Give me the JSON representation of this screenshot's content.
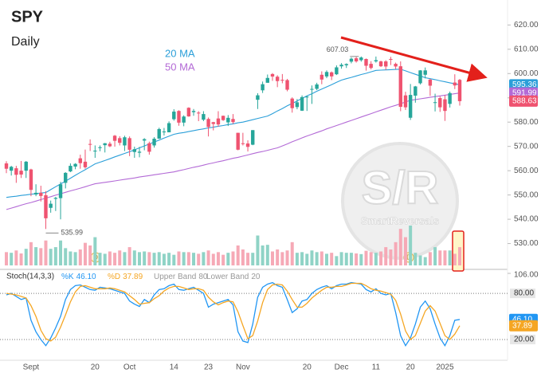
{
  "chart_data": [
    {
      "type": "candlestick",
      "title": "SPY",
      "subtitle": "Daily",
      "categories": [
        null,
        null,
        null,
        null,
        null,
        "Sept",
        null,
        null,
        null,
        null,
        null,
        null,
        null,
        null,
        null,
        null,
        null,
        null,
        "20",
        null,
        null,
        null,
        null,
        null,
        null,
        "Oct",
        null,
        null,
        null,
        null,
        null,
        null,
        null,
        null,
        "14",
        null,
        null,
        null,
        null,
        null,
        null,
        "23",
        null,
        null,
        null,
        null,
        null,
        null,
        "Nov",
        null,
        null,
        null,
        null,
        null,
        null,
        null,
        null,
        null,
        null,
        null,
        null,
        "20",
        null,
        null,
        null,
        null,
        null,
        null,
        "Dec",
        null,
        null,
        null,
        null,
        null,
        null,
        "11",
        null,
        null,
        null,
        null,
        null,
        null,
        "20",
        null,
        null,
        null,
        null,
        null,
        null,
        "2025",
        null,
        null,
        null
      ],
      "open": [
        563,
        560,
        561,
        560,
        560,
        560.5,
        550.2,
        550.9,
        549.9,
        544.7,
        548.4,
        548.7,
        555,
        559.7,
        561.7,
        565.1,
        563.7,
        571,
        568.2,
        569.3,
        570.5,
        571.1,
        574.4,
        573.4,
        570.4,
        573.4,
        567.7,
        567.4,
        572.4,
        571.3,
        570.4,
        573.2,
        575.8,
        575.8,
        581.2,
        584.6,
        579.8,
        585.9,
        584.1,
        583.9,
        581,
        581.3,
        579.98,
        581.5,
        582.6,
        579.9,
        581.3,
        575.6,
        571.3,
        571.2,
        570.7,
        589.2,
        593.1,
        596.2,
        599.8,
        598.7,
        597.4,
        597.3,
        589.7,
        586.2,
        584.7,
        590.4,
        593.4,
        593.7,
        599.5,
        598.8,
        600.5,
        599.7,
        602.97,
        603.4,
        604.9,
        606.3,
        605.5,
        606,
        604,
        605,
        605,
        605,
        606,
        604,
        603,
        591,
        581.8,
        590.9,
        596,
        599.5,
        597.5,
        588,
        589.9,
        589.4,
        587.5,
        596.3,
        597.4
      ],
      "high": [
        563.9,
        562,
        562,
        564,
        564,
        560.8,
        554.4,
        553.8,
        551.6,
        547.7,
        549.2,
        555.4,
        559.4,
        563,
        563.1,
        566.6,
        568.7,
        572.9,
        570.4,
        570.4,
        571.4,
        571.9,
        574.7,
        574.2,
        574.4,
        574.1,
        569.9,
        569.8,
        573.4,
        571.96,
        573.8,
        577.7,
        577.6,
        580.3,
        585.3,
        584.9,
        582.8,
        586.1,
        585.4,
        584.5,
        584.5,
        581.9,
        580.1,
        584.5,
        582.7,
        582.9,
        583.3,
        575.6,
        575.6,
        572.5,
        576.7,
        591.9,
        596.7,
        599.6,
        600.2,
        599.3,
        599.8,
        597.8,
        590.2,
        589.5,
        591,
        590.8,
        595.1,
        596.2,
        600.9,
        601.3,
        600.85,
        603.35,
        604.3,
        604.2,
        606.6,
        606.9,
        607.03,
        606.2,
        605.1,
        607,
        605.3,
        605.5,
        606.9,
        604.5,
        605,
        592.5,
        595.7,
        594.9,
        601.4,
        602.5,
        597.8,
        591.7,
        590.6,
        591.1,
        592.6,
        599.7,
        597.8
      ],
      "low": [
        559,
        558,
        555,
        557,
        557,
        549.5,
        549.5,
        547.3,
        535.99,
        542.7,
        543.4,
        539.96,
        552.7,
        559.4,
        560.6,
        560.8,
        560.8,
        568.1,
        565.3,
        568,
        567.5,
        569.7,
        569.9,
        570.4,
        568.1,
        566,
        565.3,
        565.5,
        568.4,
        566.6,
        569.5,
        573.1,
        574.5,
        575.8,
        580.6,
        578.5,
        578.3,
        582.2,
        582.6,
        580.4,
        580.4,
        574.1,
        576.6,
        578.1,
        580.5,
        578.4,
        579.3,
        568.4,
        570.4,
        567.9,
        570.5,
        585.4,
        592,
        596.2,
        597,
        594.4,
        596,
        592.7,
        583.9,
        585.3,
        584.6,
        584.6,
        587.5,
        593.2,
        595.6,
        598.1,
        597.3,
        599.4,
        602,
        602.3,
        604.2,
        604.5,
        604.9,
        601.2,
        601.7,
        604.5,
        602.7,
        601.5,
        603.5,
        601.8,
        584.5,
        585,
        580.9,
        588,
        595.5,
        598,
        590.8,
        584.4,
        584.2,
        580.5,
        586,
        593.6,
        586.8
      ],
      "close": [
        560.8,
        561.6,
        558.3,
        558.4,
        563.7,
        552.1,
        550.9,
        549.6,
        540.4,
        546.4,
        548.8,
        554.4,
        559.1,
        562,
        562.8,
        563.1,
        561.4,
        570.98,
        568.25,
        569.67,
        571.3,
        570.04,
        572.3,
        571.47,
        573.76,
        568.62,
        568.86,
        567.82,
        572.98,
        567.8,
        573.17,
        577.14,
        576.13,
        579.58,
        584.32,
        579.78,
        582.3,
        582.35,
        584.59,
        583.63,
        583.32,
        577.99,
        579.24,
        579.04,
        580.83,
        581.77,
        580.01,
        568.64,
        571.04,
        569.81,
        576.7,
        591.04,
        595.61,
        598.19,
        598.76,
        596.9,
        597.19,
        593.35,
        585.75,
        588.15,
        590.3,
        590.5,
        593.67,
        595.51,
        597.53,
        600.65,
        598.83,
        602.55,
        603.63,
        603.91,
        606.1,
        605,
        606.6,
        603.2,
        602.3,
        605.5,
        603,
        602.9,
        605.8,
        602.9,
        586.3,
        586.1,
        591.2,
        594.7,
        601.3,
        601.3,
        595,
        588.2,
        586.1,
        584.6,
        591.95,
        595.1,
        588.63
      ],
      "volume": [
        40,
        38,
        45,
        36,
        50,
        70,
        55,
        52,
        75,
        50,
        55,
        75,
        52,
        42,
        40,
        48,
        68,
        60,
        85,
        38,
        35,
        42,
        38,
        45,
        40,
        55,
        45,
        40,
        42,
        40,
        38,
        40,
        35,
        38,
        32,
        42,
        40,
        40,
        38,
        35,
        40,
        45,
        35,
        40,
        32,
        38,
        42,
        60,
        48,
        38,
        38,
        90,
        60,
        62,
        42,
        48,
        40,
        45,
        70,
        38,
        40,
        35,
        45,
        40,
        42,
        35,
        38,
        28,
        40,
        38,
        38,
        36,
        34,
        44,
        40,
        38,
        42,
        55,
        48,
        70,
        110,
        85,
        120,
        38,
        30,
        25,
        40,
        55,
        45,
        45,
        45,
        35,
        55
      ],
      "up_color": "#26a69a",
      "down_color": "#ef5370",
      "volume_up_color": "#8fd3c6",
      "volume_down_color": "#f6a9b6",
      "series": [
        {
          "name": "20 MA",
          "color": "#2b9fd9",
          "values": [
            549,
            549.3,
            549.5,
            549.8,
            550,
            550.3,
            550.5,
            550.8,
            551,
            552.2,
            553.4,
            554.5,
            555.7,
            556.9,
            558.1,
            559.3,
            560.4,
            561.6,
            562.8,
            563.5,
            564.2,
            564.9,
            565.7,
            566.4,
            567.1,
            567.8,
            568.6,
            569.4,
            570.2,
            571,
            571.8,
            572.6,
            573.4,
            574.2,
            575,
            575.4,
            575.7,
            576.1,
            576.5,
            576.9,
            577.2,
            577.6,
            577.9,
            578.3,
            578.6,
            579,
            579.3,
            579.7,
            580,
            580.5,
            581,
            581.5,
            582,
            582.5,
            583.5,
            584.6,
            585.6,
            586.7,
            587.7,
            588.7,
            589.8,
            590.8,
            591.7,
            592.7,
            593.6,
            594.5,
            595.4,
            596.4,
            597.3,
            597.9,
            598.4,
            599,
            599.6,
            600.1,
            600.7,
            601.3,
            601.4,
            601.5,
            601.6,
            601.7,
            601.8,
            601.1,
            600.4,
            599.7,
            599,
            598.3,
            597.9,
            597.5,
            597,
            596.6,
            596.2,
            595.8,
            595.36
          ]
        },
        {
          "name": "50 MA",
          "color": "#b36ad6",
          "values": [
            544,
            544.6,
            545.2,
            545.8,
            546.4,
            546.9,
            547.5,
            548.1,
            548.7,
            549.3,
            549.9,
            550.5,
            551.1,
            551.7,
            552.2,
            552.8,
            553.4,
            554,
            554.6,
            554.9,
            555.2,
            555.5,
            555.8,
            556.1,
            556.4,
            556.7,
            557,
            557.4,
            557.7,
            558,
            558.3,
            558.6,
            558.9,
            559.2,
            559.5,
            560,
            560.4,
            560.9,
            561.4,
            561.8,
            562.3,
            562.8,
            563.2,
            563.7,
            564.1,
            564.6,
            565.1,
            565.5,
            566,
            566.5,
            567,
            567.5,
            567.9,
            568.4,
            568.9,
            569.4,
            570.2,
            571,
            571.9,
            572.7,
            573.5,
            574.3,
            575,
            575.7,
            576.4,
            577.2,
            577.9,
            578.6,
            579.3,
            580,
            580.7,
            581.4,
            582.1,
            582.8,
            583.5,
            584.2,
            584.9,
            585.6,
            586.3,
            586.9,
            587.6,
            588.3,
            589,
            589.3,
            589.6,
            589.9,
            590.2,
            590.5,
            590.8,
            591.1,
            591.4,
            591.7,
            591.99
          ]
        }
      ],
      "ylim": [
        521,
        627
      ],
      "yticks": [
        {
          "value": 530,
          "label": "530.00"
        },
        {
          "value": 540,
          "label": "540.00"
        },
        {
          "value": 550,
          "label": "550.00"
        },
        {
          "value": 560,
          "label": "560.00"
        },
        {
          "value": 570,
          "label": "570.00"
        },
        {
          "value": 580,
          "label": "580.00"
        },
        {
          "value": 590,
          "label": "590.00"
        },
        {
          "value": 600,
          "label": "600.00"
        },
        {
          "value": 610,
          "label": "610.00"
        },
        {
          "value": 620,
          "label": "620.00"
        }
      ],
      "grid": false,
      "watermark": {
        "logo": "S/R",
        "name": "SmartReversals"
      }
    },
    {
      "type": "line",
      "title": "Stoch(14,3,3)",
      "series": [
        {
          "name": "%K",
          "color": "#2196f3",
          "last_value_label": "46.10",
          "values": [
            78,
            80,
            76,
            72,
            74,
            45,
            30,
            20,
            12,
            22,
            35,
            50,
            72,
            85,
            90,
            91,
            88,
            85,
            84,
            88,
            87,
            86,
            84,
            82,
            80,
            70,
            66,
            63,
            72,
            68,
            78,
            85,
            86,
            90,
            92,
            85,
            84,
            86,
            88,
            84,
            80,
            62,
            66,
            68,
            70,
            72,
            65,
            30,
            18,
            16,
            40,
            75,
            88,
            92,
            94,
            90,
            88,
            72,
            55,
            60,
            70,
            72,
            80,
            85,
            88,
            90,
            86,
            90,
            92,
            92,
            94,
            93,
            92,
            85,
            82,
            86,
            80,
            78,
            80,
            55,
            25,
            12,
            22,
            40,
            62,
            70,
            60,
            40,
            22,
            12,
            25,
            45,
            46.1
          ]
        },
        {
          "name": "%D",
          "color": "#f5a623",
          "last_value_label": "37.89",
          "values": [
            80,
            79,
            78,
            76,
            74,
            64,
            50,
            32,
            21,
            18,
            23,
            36,
            52,
            69,
            82,
            89,
            90,
            88,
            86,
            86,
            86,
            87,
            86,
            84,
            82,
            77,
            72,
            66,
            67,
            68,
            73,
            77,
            83,
            87,
            89,
            89,
            87,
            85,
            86,
            86,
            84,
            75,
            69,
            65,
            68,
            70,
            69,
            56,
            38,
            21,
            25,
            44,
            68,
            85,
            91,
            92,
            91,
            83,
            72,
            62,
            62,
            67,
            74,
            79,
            84,
            88,
            88,
            89,
            89,
            91,
            93,
            93,
            93,
            90,
            86,
            84,
            83,
            81,
            79,
            71,
            53,
            31,
            20,
            25,
            41,
            57,
            64,
            57,
            41,
            25,
            20,
            27,
            37.89
          ]
        }
      ],
      "bands": [
        {
          "name": "Upper Band",
          "value": 80,
          "label": "80.00"
        },
        {
          "name": "Lower Band",
          "value": 20,
          "label": "20.00"
        }
      ],
      "ylim": [
        -7,
        106
      ],
      "yticks": [
        {
          "value": 106,
          "label": "106.00"
        }
      ]
    }
  ]
}
